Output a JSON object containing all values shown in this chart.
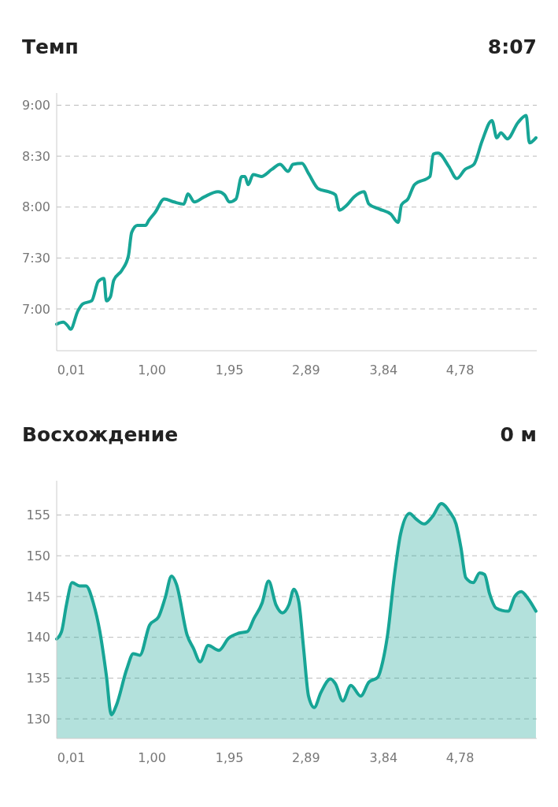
{
  "chart_data": [
    {
      "type": "line",
      "title": "Темп",
      "subtitle": "8:07",
      "xlim": [
        -0.17,
        5.72
      ],
      "xticks": [
        {
          "value": 0.01,
          "label": "0,01"
        },
        {
          "value": 1.0,
          "label": "1,00"
        },
        {
          "value": 1.95,
          "label": "1,95"
        },
        {
          "value": 2.89,
          "label": "2,89"
        },
        {
          "value": 3.84,
          "label": "3,84"
        },
        {
          "value": 4.78,
          "label": "4,78"
        }
      ],
      "ylim": [
        6.59,
        9.12
      ],
      "yticks": [
        {
          "value": 7,
          "label": "7:00"
        },
        {
          "value": 7.5,
          "label": "7:30"
        },
        {
          "value": 8,
          "label": "8:00"
        },
        {
          "value": 8.5,
          "label": "8:30"
        },
        {
          "value": 9,
          "label": "9:00"
        }
      ],
      "grid": "y",
      "series": [
        {
          "color": "#17a596",
          "x": [
            -0.17,
            -0.09,
            -0.03,
            0.0,
            0.09,
            0.15,
            0.26,
            0.34,
            0.41,
            0.44,
            0.49,
            0.53,
            0.63,
            0.71,
            0.75,
            0.82,
            0.92,
            0.96,
            1.04,
            1.15,
            1.27,
            1.39,
            1.44,
            1.52,
            1.64,
            1.81,
            1.89,
            1.95,
            2.03,
            2.1,
            2.14,
            2.18,
            2.24,
            2.34,
            2.47,
            2.57,
            2.67,
            2.73,
            2.84,
            2.92,
            3.04,
            3.17,
            3.25,
            3.3,
            3.39,
            3.48,
            3.6,
            3.66,
            3.79,
            3.93,
            4.02,
            4.06,
            4.14,
            4.22,
            4.41,
            4.45,
            4.51,
            4.64,
            4.74,
            4.84,
            4.95,
            5.05,
            5.17,
            5.23,
            5.28,
            5.36,
            5.49,
            5.59,
            5.63,
            5.71
          ],
          "values": [
            6.85,
            6.87,
            6.83,
            6.8,
            6.98,
            7.05,
            7.08,
            7.27,
            7.3,
            7.08,
            7.12,
            7.28,
            7.38,
            7.52,
            7.75,
            7.82,
            7.82,
            7.87,
            7.95,
            8.08,
            8.05,
            8.03,
            8.13,
            8.05,
            8.1,
            8.15,
            8.12,
            8.05,
            8.08,
            8.3,
            8.3,
            8.22,
            8.32,
            8.3,
            8.37,
            8.42,
            8.35,
            8.42,
            8.43,
            8.33,
            8.18,
            8.15,
            8.12,
            7.97,
            8.02,
            8.1,
            8.15,
            8.03,
            7.98,
            7.93,
            7.85,
            8.02,
            8.08,
            8.22,
            8.3,
            8.52,
            8.53,
            8.4,
            8.28,
            8.37,
            8.42,
            8.65,
            8.85,
            8.68,
            8.73,
            8.67,
            8.83,
            8.9,
            8.63,
            8.68
          ]
        }
      ]
    },
    {
      "type": "area",
      "title": "Восхождение",
      "subtitle": "0 м",
      "xlim": [
        -0.17,
        5.72
      ],
      "xticks": [
        {
          "value": 0.01,
          "label": "0,01"
        },
        {
          "value": 1.0,
          "label": "1,00"
        },
        {
          "value": 1.95,
          "label": "1,95"
        },
        {
          "value": 2.89,
          "label": "2,89"
        },
        {
          "value": 3.84,
          "label": "3,84"
        },
        {
          "value": 4.78,
          "label": "4,78"
        }
      ],
      "ylim": [
        127.6,
        159.2
      ],
      "yticks": [
        130,
        135,
        140,
        145,
        150,
        155
      ],
      "grid": "y",
      "series": [
        {
          "color": "#17a596",
          "x": [
            -0.17,
            -0.11,
            -0.05,
            0.02,
            0.11,
            0.19,
            0.28,
            0.36,
            0.44,
            0.5,
            0.56,
            0.69,
            0.77,
            0.85,
            0.97,
            1.08,
            1.16,
            1.24,
            1.3,
            1.43,
            1.51,
            1.59,
            1.69,
            1.82,
            1.94,
            2.06,
            2.17,
            2.25,
            2.35,
            2.43,
            2.52,
            2.6,
            2.68,
            2.74,
            2.8,
            2.86,
            2.92,
            2.99,
            3.07,
            3.19,
            3.25,
            3.34,
            3.44,
            3.56,
            3.66,
            3.77,
            3.83,
            3.89,
            3.97,
            4.05,
            4.16,
            4.24,
            4.34,
            4.44,
            4.55,
            4.65,
            4.73,
            4.79,
            4.85,
            4.94,
            5.02,
            5.08,
            5.14,
            5.22,
            5.37,
            5.45,
            5.53,
            5.61,
            5.71
          ],
          "values": [
            139.8,
            140.7,
            144.0,
            146.7,
            146.3,
            146.3,
            144.2,
            140.7,
            135.3,
            130.5,
            131.6,
            136.1,
            138.0,
            137.8,
            141.5,
            142.5,
            144.8,
            147.5,
            146.5,
            140.3,
            138.6,
            137.0,
            139.0,
            138.4,
            139.9,
            140.5,
            140.7,
            142.3,
            144.2,
            146.9,
            144.0,
            143.0,
            144.0,
            145.9,
            144.4,
            138.6,
            132.8,
            131.4,
            133.2,
            134.9,
            134.3,
            132.2,
            134.1,
            132.8,
            134.5,
            135.1,
            137.0,
            140.3,
            147.3,
            152.7,
            155.2,
            154.5,
            153.9,
            154.8,
            156.4,
            155.4,
            153.9,
            151.0,
            147.3,
            146.7,
            147.9,
            147.7,
            145.4,
            143.6,
            143.2,
            145.0,
            145.6,
            144.8,
            143.2
          ]
        }
      ]
    }
  ]
}
